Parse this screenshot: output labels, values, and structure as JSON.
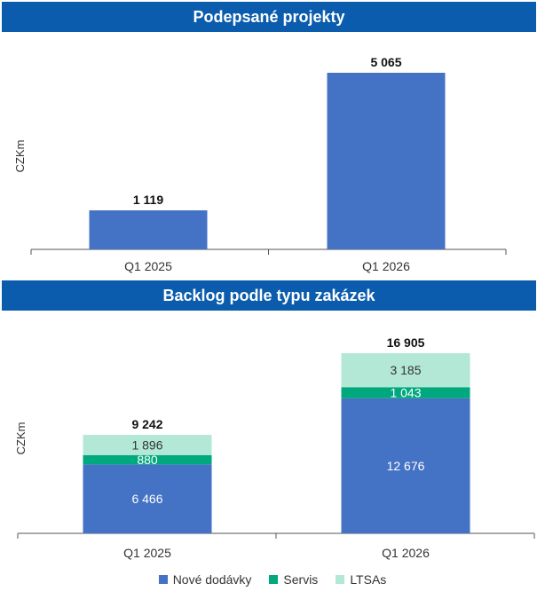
{
  "chart_data": [
    {
      "type": "bar",
      "title": "Podepsané projekty",
      "ylabel": "CZKm",
      "categories": [
        "Q1 2025",
        "Q1 2026"
      ],
      "values": [
        1119,
        5065
      ],
      "value_labels": [
        "1 119",
        "5 065"
      ],
      "ylim": [
        0,
        5065
      ],
      "grid": false,
      "color": "#4472c4"
    },
    {
      "type": "bar",
      "stacked": true,
      "title": "Backlog podle typu zakázek",
      "ylabel": "CZKm",
      "categories": [
        "Q1 2025",
        "Q1 2026"
      ],
      "series": [
        {
          "name": "Nové dodávky",
          "values": [
            6466,
            12676
          ],
          "labels": [
            "6 466",
            "12 676"
          ],
          "color": "#4472c4"
        },
        {
          "name": "Servis",
          "values": [
            880,
            1043
          ],
          "labels": [
            "880",
            "1 043"
          ],
          "color": "#00a87e"
        },
        {
          "name": "LTSAs",
          "values": [
            1896,
            3185
          ],
          "labels": [
            "1 896",
            "3 185"
          ],
          "color": "#b3e8d7"
        }
      ],
      "totals": [
        9242,
        16905
      ],
      "total_labels": [
        "9 242",
        "16 905"
      ],
      "ylim": [
        0,
        16905
      ],
      "grid": false,
      "legend": "bottom"
    }
  ]
}
